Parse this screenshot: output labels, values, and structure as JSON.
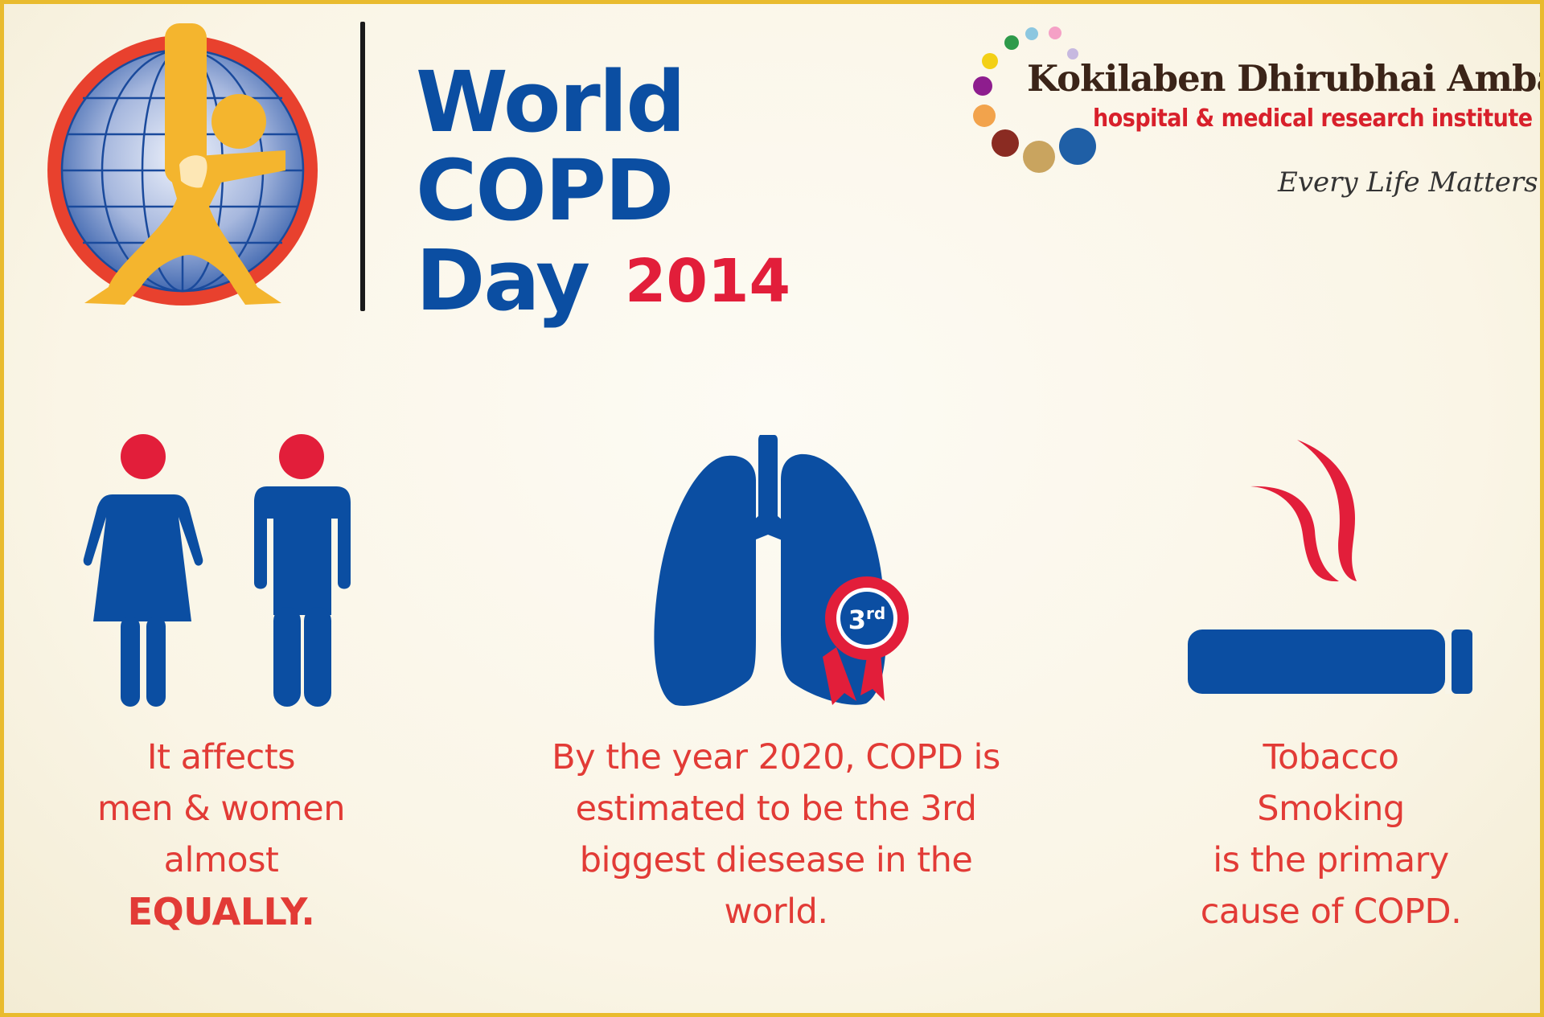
{
  "header": {
    "title_line1": "World",
    "title_line2": "COPD",
    "title_line3": "Day",
    "year": "2014"
  },
  "hospital": {
    "name": "Kokilaben Dhirubhai Ambani",
    "subtitle": "hospital & medical research institute",
    "tagline": "Every Life Matters"
  },
  "facts": [
    {
      "icon": "man-woman-icon",
      "lines": [
        "It affects",
        "men & women",
        "almost"
      ],
      "emphasis": "EQUALLY."
    },
    {
      "icon": "lungs-icon",
      "badge": "3rd",
      "lines": [
        "By the year 2020, COPD is",
        "estimated to be the 3rd",
        "biggest diesease in the",
        "world."
      ]
    },
    {
      "icon": "cigarette-icon",
      "lines": [
        "Tobacco",
        "Smoking",
        "is the primary",
        "cause of COPD."
      ]
    }
  ],
  "colors": {
    "brand_blue": "#0b4ea2",
    "accent_red": "#e21e3a",
    "caption_red": "#e23b36",
    "globe_yellow": "#f4b52e",
    "border_gold": "#e9bb2e"
  }
}
